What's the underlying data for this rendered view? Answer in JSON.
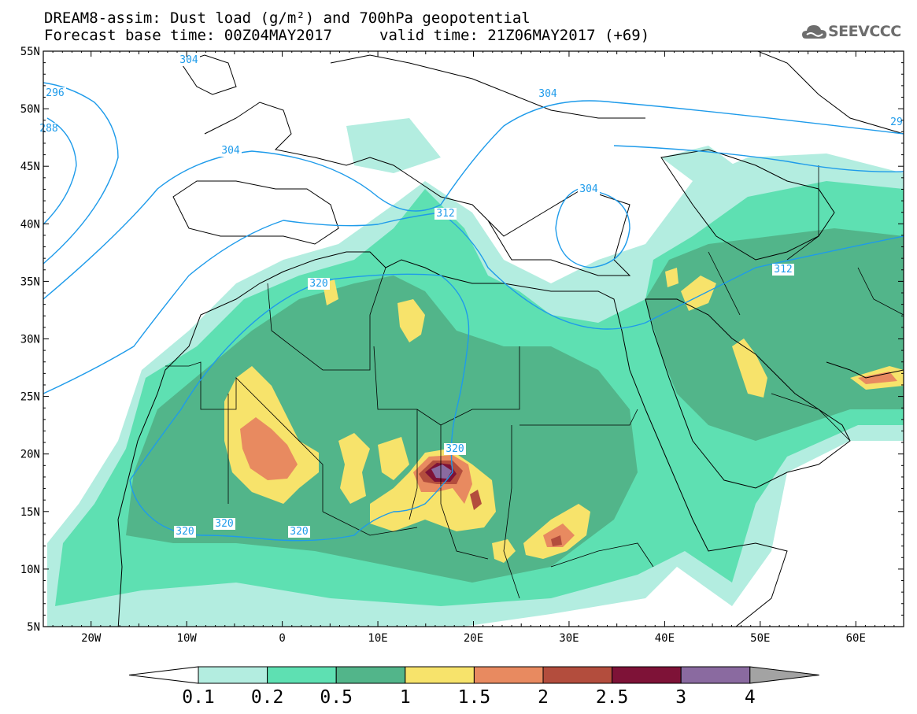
{
  "header": {
    "title_line1": "DREAM8-assim: Dust load (g/m²) and 700hPa geopotential",
    "base_time": "Forecast base time: 00Z04MAY2017",
    "valid_time": "valid time: 21Z06MAY2017 (+69)",
    "logo_text": "SEEVCCC"
  },
  "map": {
    "lon_min": -25,
    "lon_max": 65,
    "lat_min": 5,
    "lat_max": 55,
    "lat_ticks": [
      "55N",
      "50N",
      "45N",
      "40N",
      "35N",
      "30N",
      "25N",
      "20N",
      "15N",
      "10N",
      "5N"
    ],
    "lon_ticks": [
      "20W",
      "10W",
      "0",
      "10E",
      "20E",
      "30E",
      "40E",
      "50E",
      "60E"
    ],
    "contour_color": "#1e9bea",
    "contour_labels": [
      "304",
      "296",
      "288",
      "304",
      "304",
      "304",
      "312",
      "312",
      "320",
      "320",
      "320",
      "320",
      "320",
      "29"
    ]
  },
  "colorbar": {
    "levels": [
      "0.1",
      "0.2",
      "0.5",
      "1",
      "1.5",
      "2",
      "2.5",
      "3",
      "4"
    ],
    "colors": [
      "#ffffff",
      "#b3ede0",
      "#5ee0b2",
      "#52b58a",
      "#f7e36b",
      "#e88a60",
      "#b34d3d",
      "#7e1237",
      "#8a6aa0",
      "#a3a3a3"
    ]
  }
}
